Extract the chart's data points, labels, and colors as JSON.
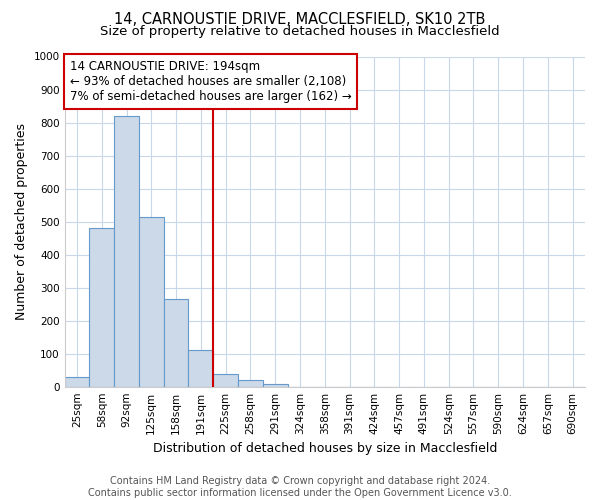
{
  "title1": "14, CARNOUSTIE DRIVE, MACCLESFIELD, SK10 2TB",
  "title2": "Size of property relative to detached houses in Macclesfield",
  "xlabel": "Distribution of detached houses by size in Macclesfield",
  "ylabel": "Number of detached properties",
  "categories": [
    "25sqm",
    "58sqm",
    "92sqm",
    "125sqm",
    "158sqm",
    "191sqm",
    "225sqm",
    "258sqm",
    "291sqm",
    "324sqm",
    "358sqm",
    "391sqm",
    "424sqm",
    "457sqm",
    "491sqm",
    "524sqm",
    "557sqm",
    "590sqm",
    "624sqm",
    "657sqm",
    "690sqm"
  ],
  "values": [
    30,
    480,
    820,
    515,
    265,
    110,
    38,
    20,
    8,
    0,
    0,
    0,
    0,
    0,
    0,
    0,
    0,
    0,
    0,
    0,
    0
  ],
  "bar_color": "#ccd9e8",
  "bar_edge_color": "#6699cc",
  "vline_x": 5,
  "vline_color": "#cc0000",
  "annotation_text": "14 CARNOUSTIE DRIVE: 194sqm\n← 93% of detached houses are smaller (2,108)\n7% of semi-detached houses are larger (162) →",
  "annotation_box_color": "#ffffff",
  "annotation_box_edge_color": "#cc0000",
  "ylim": [
    0,
    1000
  ],
  "yticks": [
    0,
    100,
    200,
    300,
    400,
    500,
    600,
    700,
    800,
    900,
    1000
  ],
  "footer_text": "Contains HM Land Registry data © Crown copyright and database right 2024.\nContains public sector information licensed under the Open Government Licence v3.0.",
  "bg_color": "#ffffff",
  "plot_bg_color": "#ffffff",
  "grid_color": "#c8d8e8",
  "title1_fontsize": 10.5,
  "title2_fontsize": 9.5,
  "axis_label_fontsize": 9,
  "tick_fontsize": 7.5,
  "annotation_fontsize": 8.5,
  "footer_fontsize": 7
}
